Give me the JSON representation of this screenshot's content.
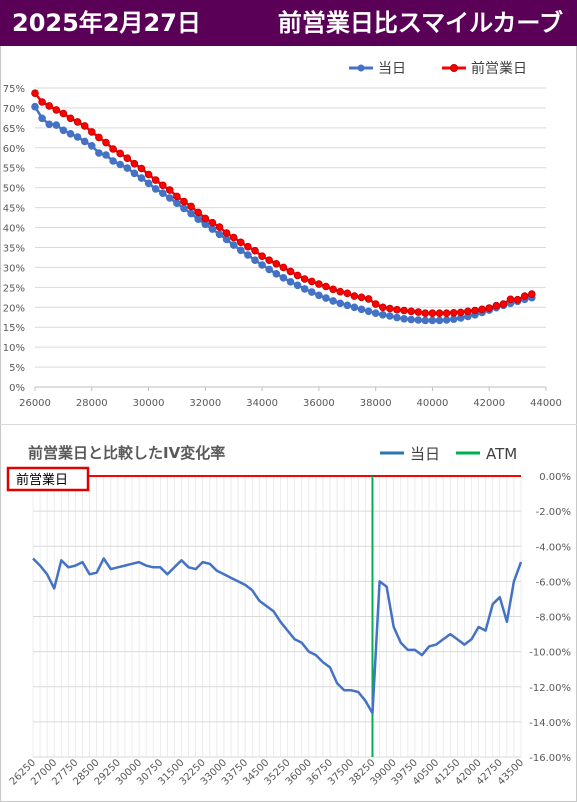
{
  "header": {
    "date": "2025年2月27日",
    "title": "前営業日比スマイルカーブ"
  },
  "colors": {
    "header_bg": "#5a0057",
    "today": "#4472c4",
    "prev_day": "#ff0000",
    "atm": "#00b050",
    "baseline": "#ff0000"
  },
  "chart_data": [
    {
      "type": "line",
      "title": "",
      "xlabel": "",
      "ylabel": "",
      "xlim": [
        26000,
        44000
      ],
      "ylim": [
        0,
        75
      ],
      "x_ticks": [
        "26000",
        "28000",
        "30000",
        "32000",
        "34000",
        "36000",
        "38000",
        "40000",
        "42000",
        "44000"
      ],
      "y_ticks": [
        "0%",
        "5%",
        "10%",
        "15%",
        "20%",
        "25%",
        "30%",
        "35%",
        "40%",
        "45%",
        "50%",
        "55%",
        "60%",
        "65%",
        "70%",
        "75%"
      ],
      "y_unit": "%",
      "grid": true,
      "legend_position": "top-right",
      "x": [
        26000,
        26250,
        26500,
        26750,
        27000,
        27250,
        27500,
        27750,
        28000,
        28250,
        28500,
        28750,
        29000,
        29250,
        29500,
        29750,
        30000,
        30250,
        30500,
        30750,
        31000,
        31250,
        31500,
        31750,
        32000,
        32250,
        32500,
        32750,
        33000,
        33250,
        33500,
        33750,
        34000,
        34250,
        34500,
        34750,
        35000,
        35250,
        35500,
        35750,
        36000,
        36250,
        36500,
        36750,
        37000,
        37250,
        37500,
        37750,
        38000,
        38250,
        38500,
        38750,
        39000,
        39250,
        39500,
        39750,
        40000,
        40250,
        40500,
        40750,
        41000,
        41250,
        41500,
        41750,
        42000,
        42250,
        42500,
        42750,
        43000,
        43250,
        43500
      ],
      "series": [
        {
          "name": "当日",
          "values": [
            70.3,
            67.4,
            65.9,
            65.7,
            64.4,
            63.5,
            62.7,
            61.6,
            60.5,
            58.7,
            58.2,
            56.7,
            55.8,
            54.9,
            53.6,
            52.4,
            51.1,
            49.7,
            48.6,
            47.4,
            46.1,
            44.8,
            43.5,
            42.1,
            40.8,
            39.6,
            38.3,
            37.0,
            35.6,
            34.3,
            33.1,
            31.8,
            30.6,
            29.5,
            28.4,
            27.4,
            26.4,
            25.5,
            24.6,
            23.8,
            23.0,
            22.3,
            21.6,
            21.0,
            20.5,
            20.0,
            19.5,
            19.0,
            18.5,
            18.1,
            17.8,
            17.4,
            17.1,
            16.9,
            16.8,
            16.7,
            16.7,
            16.7,
            16.8,
            17.0,
            17.3,
            17.7,
            18.1,
            18.7,
            19.3,
            19.9,
            20.5,
            21.0,
            21.5,
            22.0,
            22.4
          ]
        },
        {
          "name": "前営業日",
          "values": [
            73.7,
            71.5,
            70.5,
            69.5,
            68.6,
            67.4,
            66.5,
            65.5,
            64.0,
            62.6,
            61.3,
            59.7,
            58.6,
            57.4,
            56.0,
            54.8,
            53.3,
            51.9,
            50.6,
            49.4,
            47.8,
            46.5,
            45.3,
            43.8,
            42.3,
            41.2,
            40.1,
            38.6,
            37.5,
            36.3,
            35.2,
            34.2,
            32.8,
            31.8,
            30.9,
            30.0,
            29.0,
            28.0,
            27.1,
            26.5,
            25.8,
            25.2,
            24.5,
            23.9,
            23.5,
            22.8,
            22.5,
            22.1,
            20.8,
            20.0,
            19.7,
            19.4,
            19.2,
            19.0,
            18.8,
            18.5,
            18.5,
            18.5,
            18.5,
            18.6,
            18.7,
            19.0,
            19.2,
            19.5,
            19.8,
            20.4,
            20.8,
            22.0,
            21.9,
            22.8,
            23.3
          ]
        }
      ]
    },
    {
      "type": "line",
      "title": "前営業日と比較したIV変化率",
      "xlabel": "",
      "ylabel": "",
      "baseline_label": "前営業日",
      "atm_strike": 38250,
      "atm_series_name": "ATM",
      "xlim": [
        26250,
        43500
      ],
      "ylim": [
        -16,
        0
      ],
      "x_ticks": [
        "26250",
        "27000",
        "27750",
        "28500",
        "29250",
        "30000",
        "30750",
        "31500",
        "32250",
        "33000",
        "33750",
        "34500",
        "35250",
        "36000",
        "36750",
        "37500",
        "38250",
        "39000",
        "39750",
        "40500",
        "41250",
        "42000",
        "42750",
        "43500"
      ],
      "y_ticks": [
        "0.00%",
        "-2.00%",
        "-4.00%",
        "-6.00%",
        "-8.00%",
        "-10.00%",
        "-12.00%",
        "-14.00%",
        "-16.00%"
      ],
      "y_unit": "%",
      "grid": true,
      "legend_position": "top-right",
      "x": [
        26250,
        26500,
        26750,
        27000,
        27250,
        27500,
        27750,
        28000,
        28250,
        28500,
        28750,
        29000,
        29250,
        29500,
        29750,
        30000,
        30250,
        30500,
        30750,
        31000,
        31250,
        31500,
        31750,
        32000,
        32250,
        32500,
        32750,
        33000,
        33250,
        33500,
        33750,
        34000,
        34250,
        34500,
        34750,
        35000,
        35250,
        35500,
        35750,
        36000,
        36250,
        36500,
        36750,
        37000,
        37250,
        37500,
        37750,
        38000,
        38250,
        38500,
        38750,
        39000,
        39250,
        39500,
        39750,
        40000,
        40250,
        40500,
        40750,
        41000,
        41250,
        41500,
        41750,
        42000,
        42250,
        42500,
        42750,
        43000,
        43250,
        43500
      ],
      "series": [
        {
          "name": "当日",
          "values": [
            -4.7,
            -5.1,
            -5.6,
            -6.4,
            -4.8,
            -5.2,
            -5.1,
            -4.9,
            -5.6,
            -5.5,
            -4.7,
            -5.3,
            -5.2,
            -5.1,
            -5.0,
            -4.9,
            -5.1,
            -5.2,
            -5.2,
            -5.6,
            -5.2,
            -4.8,
            -5.2,
            -5.3,
            -4.9,
            -5.0,
            -5.4,
            -5.6,
            -5.8,
            -6.0,
            -6.2,
            -6.5,
            -7.1,
            -7.4,
            -7.7,
            -8.3,
            -8.8,
            -9.3,
            -9.5,
            -10.0,
            -10.2,
            -10.6,
            -10.9,
            -11.8,
            -12.2,
            -12.2,
            -12.3,
            -12.8,
            -13.5,
            -6.0,
            -6.3,
            -8.6,
            -9.5,
            -9.9,
            -9.9,
            -10.2,
            -9.7,
            -9.6,
            -9.3,
            -9.0,
            -9.3,
            -9.6,
            -9.3,
            -8.6,
            -8.8,
            -7.3,
            -6.9,
            -8.3,
            -6.0,
            -4.9
          ]
        }
      ]
    }
  ]
}
